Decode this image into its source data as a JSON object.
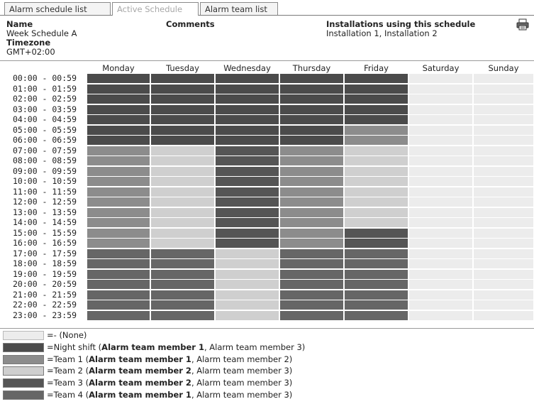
{
  "tabs": [
    {
      "label": "Alarm schedule list",
      "active": false
    },
    {
      "label": "Active Schedule",
      "active": true
    },
    {
      "label": "Alarm team list",
      "active": false
    }
  ],
  "info": {
    "name_label": "Name",
    "name_value": "Week Schedule A",
    "timezone_label": "Timezone",
    "timezone_value": "GMT+02:00",
    "comments_label": "Comments",
    "installations_label": "Installations using this schedule",
    "installations_value": "Installation 1, Installation 2"
  },
  "icons": {
    "print": "printer-icon"
  },
  "days": [
    "Monday",
    "Tuesday",
    "Wednesday",
    "Thursday",
    "Friday",
    "Saturday",
    "Sunday"
  ],
  "hours": [
    "00:00 - 00:59",
    "01:00 - 01:59",
    "02:00 - 02:59",
    "03:00 - 03:59",
    "04:00 - 04:59",
    "05:00 - 05:59",
    "06:00 - 06:59",
    "07:00 - 07:59",
    "08:00 - 08:59",
    "09:00 - 09:59",
    "10:00 - 10:59",
    "11:00 - 11:59",
    "12:00 - 12:59",
    "13:00 - 13:59",
    "14:00 - 14:59",
    "15:00 - 15:59",
    "16:00 - 16:59",
    "17:00 - 17:59",
    "18:00 - 18:59",
    "19:00 - 19:59",
    "20:00 - 20:59",
    "21:00 - 21:59",
    "22:00 - 22:59",
    "23:00 - 23:59"
  ],
  "team_colors": {
    "none": "#ececec",
    "night": "#4b4b4b",
    "team1": "#8c8c8c",
    "team2": "#cfcfcf",
    "team3": "#555555",
    "team4": "#666666"
  },
  "schedule": [
    [
      "night",
      "night",
      "night",
      "night",
      "night",
      "none",
      "none"
    ],
    [
      "night",
      "night",
      "night",
      "night",
      "night",
      "none",
      "none"
    ],
    [
      "night",
      "night",
      "night",
      "night",
      "night",
      "none",
      "none"
    ],
    [
      "night",
      "night",
      "night",
      "night",
      "night",
      "none",
      "none"
    ],
    [
      "night",
      "night",
      "night",
      "night",
      "night",
      "none",
      "none"
    ],
    [
      "night",
      "night",
      "night",
      "night",
      "team1",
      "none",
      "none"
    ],
    [
      "night",
      "night",
      "night",
      "night",
      "team1",
      "none",
      "none"
    ],
    [
      "team1",
      "team2",
      "team3",
      "team1",
      "team2",
      "none",
      "none"
    ],
    [
      "team1",
      "team2",
      "team3",
      "team1",
      "team2",
      "none",
      "none"
    ],
    [
      "team1",
      "team2",
      "team3",
      "team1",
      "team2",
      "none",
      "none"
    ],
    [
      "team1",
      "team2",
      "team3",
      "team1",
      "team2",
      "none",
      "none"
    ],
    [
      "team1",
      "team2",
      "team3",
      "team1",
      "team2",
      "none",
      "none"
    ],
    [
      "team1",
      "team2",
      "team3",
      "team1",
      "team2",
      "none",
      "none"
    ],
    [
      "team1",
      "team2",
      "team3",
      "team1",
      "team2",
      "none",
      "none"
    ],
    [
      "team1",
      "team2",
      "team3",
      "team1",
      "team2",
      "none",
      "none"
    ],
    [
      "team1",
      "team2",
      "team3",
      "team1",
      "team3",
      "none",
      "none"
    ],
    [
      "team1",
      "team2",
      "team3",
      "team1",
      "team3",
      "none",
      "none"
    ],
    [
      "team4",
      "team4",
      "team2",
      "team4",
      "team4",
      "none",
      "none"
    ],
    [
      "team4",
      "team4",
      "team2",
      "team4",
      "team4",
      "none",
      "none"
    ],
    [
      "team4",
      "team4",
      "team2",
      "team4",
      "team4",
      "none",
      "none"
    ],
    [
      "team4",
      "team4",
      "team2",
      "team4",
      "team4",
      "none",
      "none"
    ],
    [
      "team4",
      "team4",
      "team2",
      "team4",
      "team4",
      "none",
      "none"
    ],
    [
      "team4",
      "team4",
      "team2",
      "team4",
      "team4",
      "none",
      "none"
    ],
    [
      "team4",
      "team4",
      "team2",
      "team4",
      "team4",
      "none",
      "none"
    ]
  ],
  "legend": [
    {
      "key": "none",
      "prefix": "=- (None)",
      "bold": "",
      "rest": ""
    },
    {
      "key": "night",
      "prefix": "=Night shift (",
      "bold": "Alarm team member 1",
      "rest": ", Alarm team member 3)"
    },
    {
      "key": "team1",
      "prefix": "=Team 1 (",
      "bold": "Alarm team member 1",
      "rest": ", Alarm team member 2)"
    },
    {
      "key": "team2",
      "prefix": "=Team 2 (",
      "bold": "Alarm team member 2",
      "rest": ", Alarm team member 3)"
    },
    {
      "key": "team3",
      "prefix": "=Team 3 (",
      "bold": "Alarm team member 2",
      "rest": ", Alarm team member 3)"
    },
    {
      "key": "team4",
      "prefix": "=Team 4 (",
      "bold": "Alarm team member 1",
      "rest": ", Alarm team member 3)"
    }
  ]
}
